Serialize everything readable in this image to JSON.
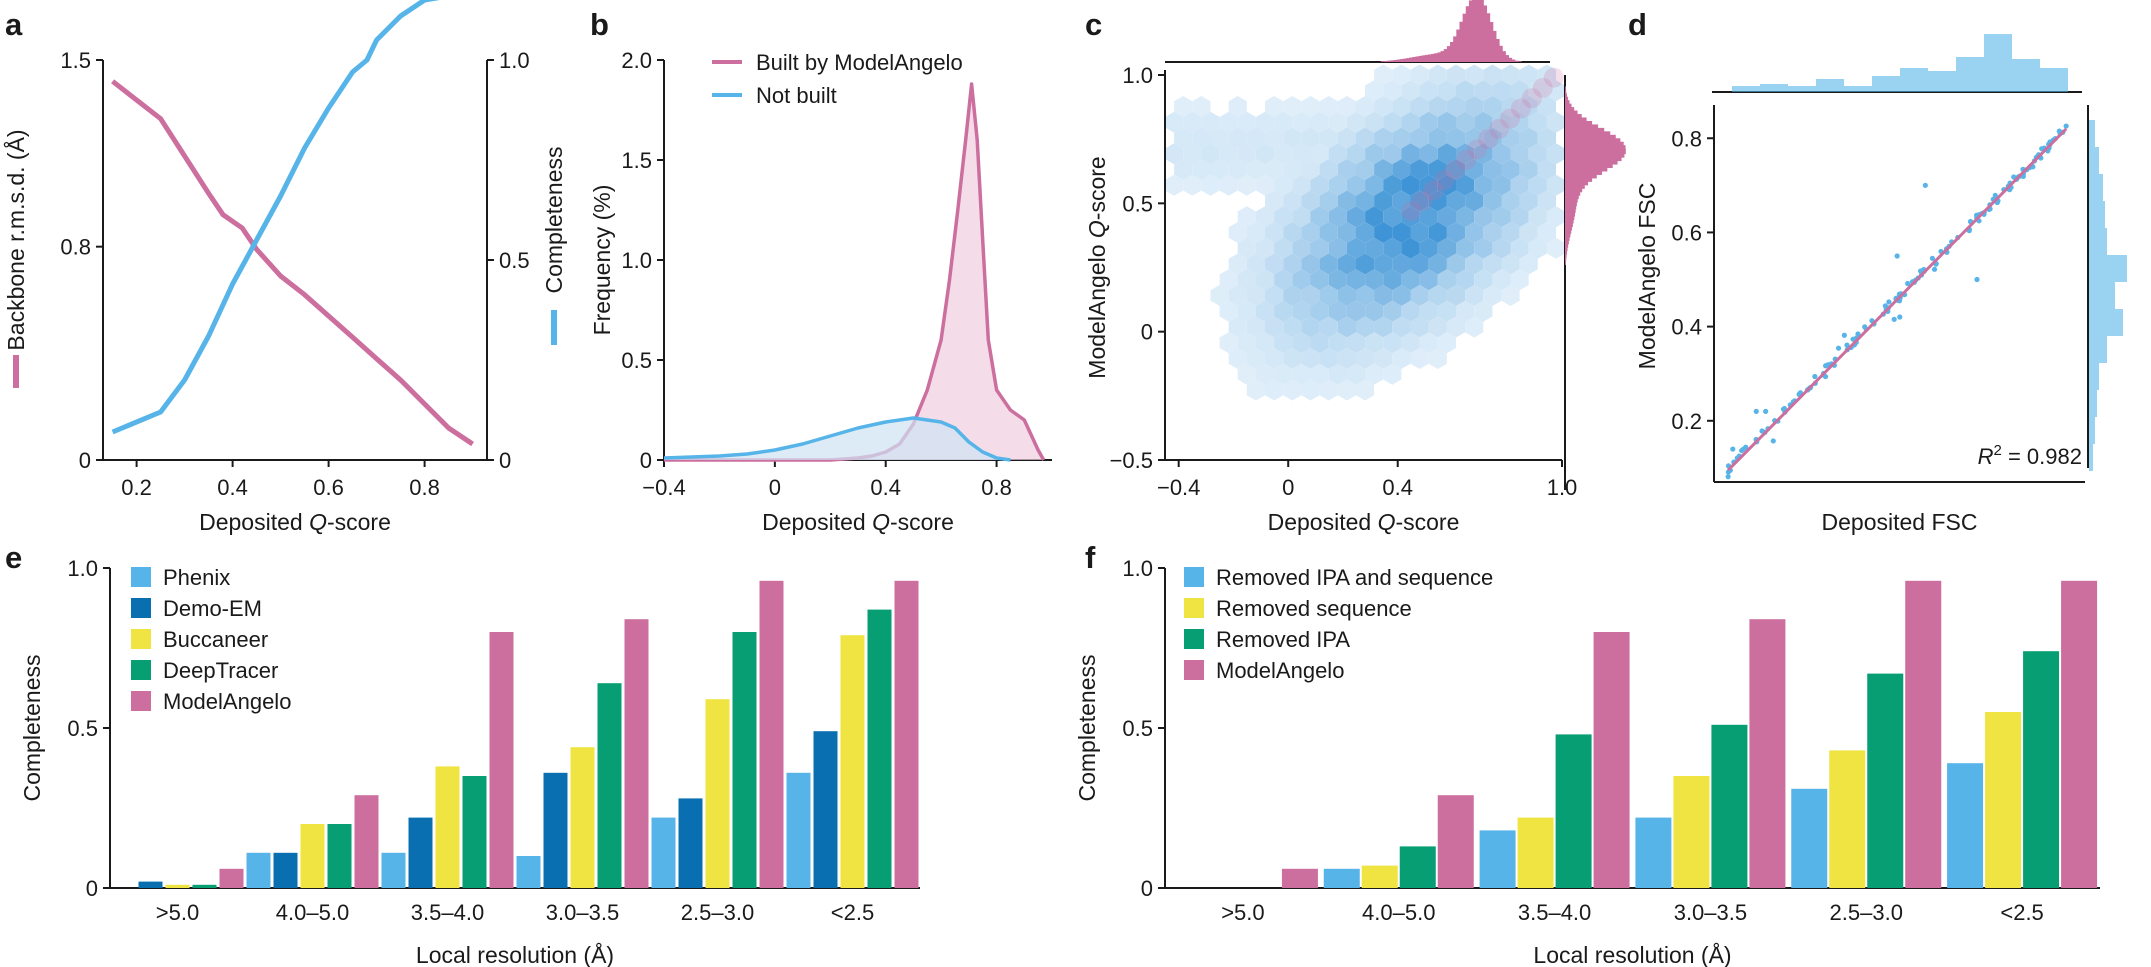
{
  "colors": {
    "pink": "#cc6f9e",
    "blue": "#56b4e9",
    "dark_blue": "#0a6fb0",
    "yellow": "#f0e442",
    "green": "#079e73",
    "pink_fill": "#f0cfe0",
    "blue_fill": "#cfe3f4"
  },
  "chart_data": [
    {
      "panel": "a",
      "type": "line",
      "xlabel": "Deposited Q-score",
      "ylabel_left": "Backbone r.m.s.d. (Å)",
      "ylabel_right": "Completeness",
      "xlim": [
        0.13,
        0.93
      ],
      "xticks": [
        "0.2",
        "0.4",
        "0.6",
        "0.8"
      ],
      "ylim_left": [
        0,
        1.5
      ],
      "yticks_left": [
        "0",
        "0.8",
        "1.5"
      ],
      "ylim_right": [
        0,
        1.0
      ],
      "yticks_right": [
        "0",
        "0.5",
        "1.0"
      ],
      "series": [
        {
          "axis": "left",
          "color": "pink",
          "x": [
            0.15,
            0.25,
            0.3,
            0.35,
            0.38,
            0.42,
            0.45,
            0.5,
            0.55,
            0.6,
            0.65,
            0.7,
            0.75,
            0.8,
            0.85,
            0.9
          ],
          "values": [
            1.42,
            1.28,
            1.14,
            1.0,
            0.92,
            0.87,
            0.79,
            0.69,
            0.62,
            0.54,
            0.46,
            0.38,
            0.3,
            0.21,
            0.12,
            0.06
          ]
        },
        {
          "axis": "right",
          "color": "blue",
          "x": [
            0.15,
            0.25,
            0.3,
            0.35,
            0.4,
            0.45,
            0.5,
            0.55,
            0.6,
            0.65,
            0.68,
            0.7,
            0.75,
            0.8,
            0.85,
            0.9
          ],
          "values": [
            0.07,
            0.12,
            0.2,
            0.31,
            0.44,
            0.55,
            0.66,
            0.78,
            0.88,
            0.97,
            1.0,
            1.05,
            1.11,
            1.15,
            1.16,
            1.17
          ]
        }
      ]
    },
    {
      "panel": "b",
      "type": "area",
      "xlabel": "Deposited Q-score",
      "ylabel": "Frequency (%)",
      "xlim": [
        -0.4,
        1.0
      ],
      "xticks": [
        "−0.4",
        "0",
        "0.4",
        "0.8"
      ],
      "ylim": [
        0,
        2.0
      ],
      "yticks": [
        "0",
        "0.5",
        "1.0",
        "1.5",
        "2.0"
      ],
      "series": [
        {
          "name": "Built by ModelAngelo",
          "color": "pink",
          "x": [
            -0.4,
            0.2,
            0.3,
            0.35,
            0.4,
            0.45,
            0.5,
            0.55,
            0.6,
            0.63,
            0.66,
            0.69,
            0.71,
            0.73,
            0.75,
            0.77,
            0.8,
            0.85,
            0.9,
            0.95,
            0.97
          ],
          "values": [
            0.0,
            0.0,
            0.01,
            0.02,
            0.04,
            0.08,
            0.18,
            0.35,
            0.6,
            0.9,
            1.25,
            1.62,
            1.88,
            1.6,
            1.1,
            0.6,
            0.35,
            0.25,
            0.2,
            0.05,
            0.0
          ]
        },
        {
          "name": "Not built",
          "color": "blue",
          "x": [
            -0.4,
            -0.3,
            -0.2,
            -0.1,
            0.0,
            0.1,
            0.2,
            0.3,
            0.4,
            0.5,
            0.55,
            0.6,
            0.65,
            0.7,
            0.75,
            0.8,
            0.85
          ],
          "values": [
            0.01,
            0.015,
            0.02,
            0.03,
            0.05,
            0.08,
            0.12,
            0.16,
            0.19,
            0.21,
            0.2,
            0.19,
            0.16,
            0.09,
            0.04,
            0.01,
            0.0
          ]
        }
      ],
      "legend": [
        "Built by ModelAngelo",
        "Not built"
      ]
    },
    {
      "panel": "c",
      "type": "heatmap",
      "xlabel": "Deposited Q-score",
      "ylabel": "ModelAngelo Q-score",
      "xlim": [
        -0.45,
        1.0
      ],
      "xticks": [
        "−0.4",
        "0",
        "0.4",
        "1.0"
      ],
      "ylim": [
        -0.5,
        1.0
      ],
      "yticks": [
        "−0.5",
        "0",
        "0.5",
        "1.0"
      ]
    },
    {
      "panel": "d",
      "type": "scatter",
      "xlabel": "Deposited FSC",
      "ylabel": "ModelAngelo FSC",
      "xlim": [
        0.07,
        0.86
      ],
      "ylim": [
        0.07,
        0.86
      ],
      "yticks": [
        "0.2",
        "0.4",
        "0.6",
        "0.8"
      ],
      "annotation": "= 0.982"
    },
    {
      "panel": "e",
      "type": "bar",
      "xlabel": "Local resolution (Å)",
      "ylabel": "Completeness",
      "ylim": [
        0,
        1.0
      ],
      "yticks": [
        "0",
        "0.5",
        "1.0"
      ],
      "categories": [
        ">5.0",
        "4.0–5.0",
        "3.5–4.0",
        "3.0–3.5",
        "2.5–3.0",
        "<2.5"
      ],
      "series": [
        {
          "name": "Phenix",
          "color": "blue",
          "values": [
            0.0,
            0.11,
            0.11,
            0.1,
            0.22,
            0.36
          ]
        },
        {
          "name": "Demo-EM",
          "color": "dark_blue",
          "values": [
            0.02,
            0.11,
            0.22,
            0.36,
            0.28,
            0.49
          ]
        },
        {
          "name": "Buccaneer",
          "color": "yellow",
          "values": [
            0.01,
            0.2,
            0.38,
            0.44,
            0.59,
            0.79
          ]
        },
        {
          "name": "DeepTracer",
          "color": "green",
          "values": [
            0.01,
            0.2,
            0.35,
            0.64,
            0.8,
            0.87
          ]
        },
        {
          "name": "ModelAngelo",
          "color": "pink",
          "values": [
            0.06,
            0.29,
            0.8,
            0.84,
            0.96,
            0.96
          ]
        }
      ]
    },
    {
      "panel": "f",
      "type": "bar",
      "xlabel": "Local resolution (Å)",
      "ylabel": "Completeness",
      "ylim": [
        0,
        1.0
      ],
      "yticks": [
        "0",
        "0.5",
        "1.0"
      ],
      "categories": [
        ">5.0",
        "4.0–5.0",
        "3.5–4.0",
        "3.0–3.5",
        "2.5–3.0",
        "<2.5"
      ],
      "series": [
        {
          "name": "Removed IPA and sequence",
          "color": "blue",
          "values": [
            0.0,
            0.06,
            0.18,
            0.22,
            0.31,
            0.39
          ]
        },
        {
          "name": "Removed sequence",
          "color": "yellow",
          "values": [
            0.0,
            0.07,
            0.22,
            0.35,
            0.43,
            0.55
          ]
        },
        {
          "name": "Removed IPA",
          "color": "green",
          "values": [
            0.0,
            0.13,
            0.48,
            0.51,
            0.67,
            0.74
          ]
        },
        {
          "name": "ModelAngelo",
          "color": "pink",
          "values": [
            0.06,
            0.29,
            0.8,
            0.84,
            0.96,
            0.96
          ]
        }
      ]
    }
  ]
}
